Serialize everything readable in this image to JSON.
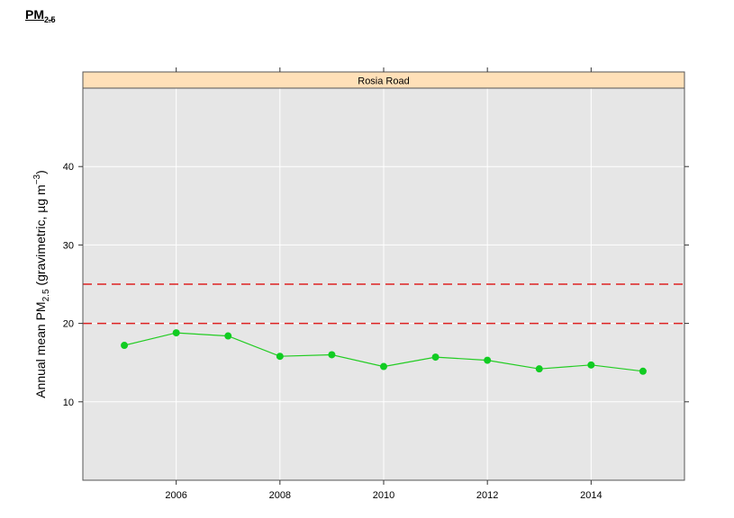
{
  "page": {
    "heading_main": "PM",
    "heading_sub": "2.5"
  },
  "chart_data": {
    "type": "line",
    "panel_title": "Rosia Road",
    "ylabel_parts": {
      "pre": "Annual mean PM",
      "sub": "2.5",
      "mid": " (gravimetric, µg m",
      "sup": "−3",
      "post": ")"
    },
    "xlim": [
      2004.2,
      2015.8
    ],
    "ylim": [
      0,
      50
    ],
    "x_ticks": [
      2006,
      2008,
      2010,
      2012,
      2014
    ],
    "y_ticks": [
      10,
      20,
      30,
      40
    ],
    "x": [
      2005,
      2006,
      2007,
      2008,
      2009,
      2010,
      2011,
      2012,
      2013,
      2014,
      2015
    ],
    "y": [
      17.2,
      18.8,
      18.4,
      15.8,
      16.0,
      14.5,
      15.7,
      15.3,
      14.2,
      14.7,
      13.9
    ],
    "reference_lines": [
      20,
      25
    ],
    "grid": true,
    "colors": {
      "series": "#22cc22",
      "marker": "#11cc22",
      "reference": "#dd2222",
      "panel_bg": "#e6e6e6",
      "strip_bg": "#ffe0b8",
      "grid": "#ffffff"
    }
  }
}
